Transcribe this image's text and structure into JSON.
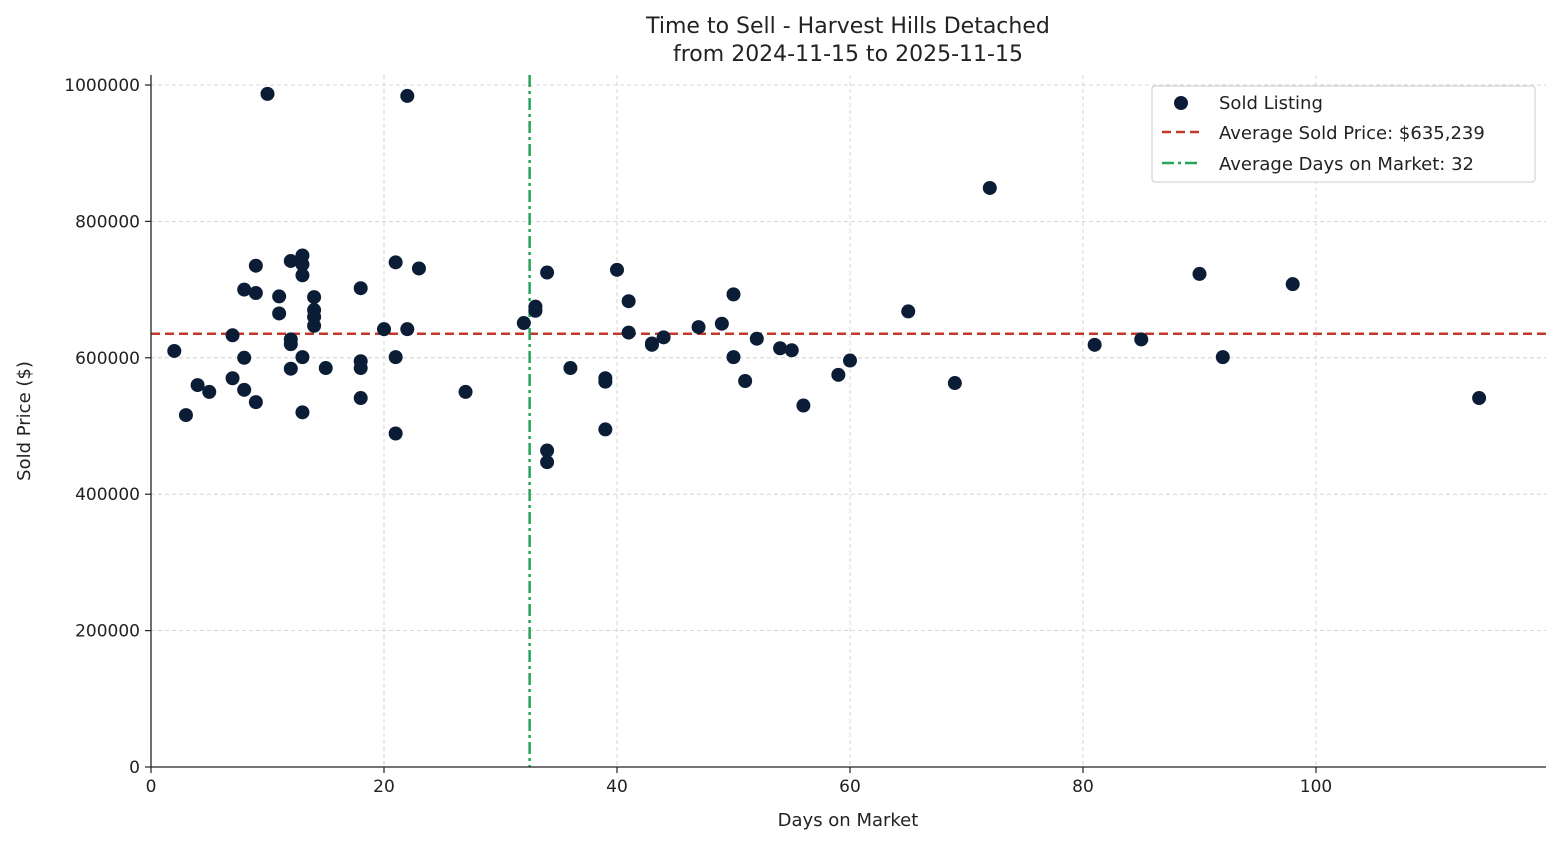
{
  "chart_data": {
    "type": "scatter",
    "title_line1": "Time to Sell - Harvest Hills Detached",
    "title_line2": "from 2024-11-15 to 2025-11-15",
    "xlabel": "Days on Market",
    "ylabel": "Sold Price ($)",
    "xlim": [
      0,
      120
    ],
    "ylim": [
      0,
      1000000
    ],
    "x_ticks": [
      0,
      20,
      40,
      60,
      80,
      100
    ],
    "x_tick_labels": [
      "0",
      "20",
      "40",
      "60",
      "80",
      "100"
    ],
    "y_ticks": [
      0,
      200000,
      400000,
      600000,
      800000,
      1000000
    ],
    "y_tick_labels": [
      "0",
      "200000",
      "400000",
      "600000",
      "800000",
      "1000000"
    ],
    "grid": true,
    "legend_position": "top-right",
    "legend": {
      "scatter": "Sold Listing",
      "avg_price": "Average Sold Price: $635,239",
      "avg_days": "Average Days on Market: 32"
    },
    "average_price": 635239,
    "average_days": 32.5,
    "colors": {
      "points": "#0b1d36",
      "avg_price_line": "#c0392b",
      "avg_days_line": "#27a35a"
    },
    "series": [
      {
        "name": "Sold Listing",
        "points": [
          [
            2,
            610000
          ],
          [
            3,
            516000
          ],
          [
            4,
            560000
          ],
          [
            5,
            550000
          ],
          [
            7,
            633000
          ],
          [
            7,
            570000
          ],
          [
            8,
            700000
          ],
          [
            8,
            600000
          ],
          [
            8,
            553000
          ],
          [
            9,
            735000
          ],
          [
            9,
            695000
          ],
          [
            9,
            535000
          ],
          [
            10,
            987000
          ],
          [
            11,
            690000
          ],
          [
            11,
            665000
          ],
          [
            12,
            742000
          ],
          [
            12,
            627000
          ],
          [
            12,
            620000
          ],
          [
            12,
            584000
          ],
          [
            13,
            750000
          ],
          [
            13,
            737000
          ],
          [
            13,
            721000
          ],
          [
            13,
            601000
          ],
          [
            13,
            520000
          ],
          [
            14,
            689000
          ],
          [
            14,
            670000
          ],
          [
            14,
            660000
          ],
          [
            14,
            647000
          ],
          [
            15,
            585000
          ],
          [
            18,
            702000
          ],
          [
            18,
            595000
          ],
          [
            18,
            585000
          ],
          [
            18,
            541000
          ],
          [
            20,
            642000
          ],
          [
            21,
            740000
          ],
          [
            21,
            601000
          ],
          [
            21,
            489000
          ],
          [
            22,
            984000
          ],
          [
            22,
            642000
          ],
          [
            23,
            731000
          ],
          [
            27,
            550000
          ],
          [
            32,
            651000
          ],
          [
            33,
            675000
          ],
          [
            33,
            669000
          ],
          [
            34,
            725000
          ],
          [
            34,
            464000
          ],
          [
            34,
            447000
          ],
          [
            36,
            585000
          ],
          [
            39,
            570000
          ],
          [
            39,
            565000
          ],
          [
            39,
            495000
          ],
          [
            40,
            729000
          ],
          [
            41,
            683000
          ],
          [
            41,
            637000
          ],
          [
            43,
            621000
          ],
          [
            43,
            619000
          ],
          [
            44,
            630000
          ],
          [
            47,
            645000
          ],
          [
            49,
            650000
          ],
          [
            50,
            693000
          ],
          [
            50,
            601000
          ],
          [
            51,
            566000
          ],
          [
            52,
            628000
          ],
          [
            54,
            614000
          ],
          [
            55,
            611000
          ],
          [
            56,
            530000
          ],
          [
            59,
            575000
          ],
          [
            60,
            596000
          ],
          [
            65,
            668000
          ],
          [
            69,
            563000
          ],
          [
            72,
            849000
          ],
          [
            81,
            619000
          ],
          [
            85,
            627000
          ],
          [
            90,
            723000
          ],
          [
            92,
            601000
          ],
          [
            98,
            708000
          ],
          [
            114,
            541000
          ]
        ]
      }
    ]
  }
}
